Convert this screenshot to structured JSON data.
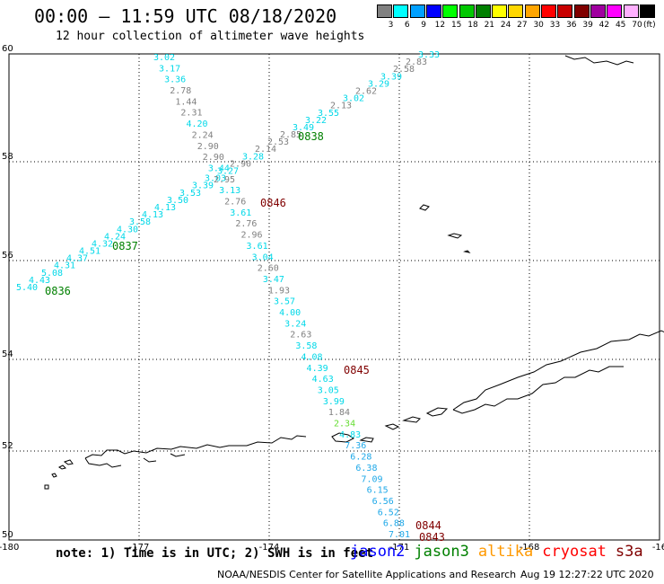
{
  "header": {
    "title": "00:00 – 11:59 UTC 08/18/2020",
    "subtitle": "12 hour collection of altimeter wave heights"
  },
  "color_scale": {
    "unit_label": "(ft)",
    "bins": [
      {
        "label": "3",
        "color": "#808080"
      },
      {
        "label": "6",
        "color": "#00ffff"
      },
      {
        "label": "9",
        "color": "#00a0ff"
      },
      {
        "label": "12",
        "color": "#0000ff"
      },
      {
        "label": "15",
        "color": "#00ff00"
      },
      {
        "label": "18",
        "color": "#00c800"
      },
      {
        "label": "21",
        "color": "#008000"
      },
      {
        "label": "24",
        "color": "#ffff00"
      },
      {
        "label": "27",
        "color": "#ffd700"
      },
      {
        "label": "30",
        "color": "#ffa500"
      },
      {
        "label": "33",
        "color": "#ff0000"
      },
      {
        "label": "36",
        "color": "#c80000"
      },
      {
        "label": "39",
        "color": "#800000"
      },
      {
        "label": "42",
        "color": "#a000a0"
      },
      {
        "label": "45",
        "color": "#ff00ff"
      },
      {
        "label": "70",
        "color": "#ffb0ff"
      },
      {
        "label": "",
        "color": "#000000"
      }
    ]
  },
  "axes": {
    "x_ticks": [
      "-180",
      "-177",
      "-174",
      "-171",
      "-168",
      "-16"
    ],
    "y_ticks": [
      "60",
      "58",
      "56",
      "54",
      "52",
      "50"
    ]
  },
  "pass_labels": [
    {
      "text": "0838",
      "color": "#008000",
      "id": "pass-0838"
    },
    {
      "text": "0837",
      "color": "#008000",
      "id": "pass-0837"
    },
    {
      "text": "0836",
      "color": "#008000",
      "id": "pass-0836"
    },
    {
      "text": "0846",
      "color": "#800000",
      "id": "pass-0846"
    },
    {
      "text": "0845",
      "color": "#800000",
      "id": "pass-0845"
    },
    {
      "text": "0844",
      "color": "#800000",
      "id": "pass-0844"
    },
    {
      "text": "0843",
      "color": "#800000",
      "id": "pass-0843"
    }
  ],
  "track_a_values": [
    "3.33",
    "2.83",
    "2.58",
    "3.39",
    "3.29",
    "2.62",
    "3.02",
    "2.13",
    "3.55",
    "3.22",
    "3.49",
    "2.85",
    "2.53",
    "2.14",
    "3.28",
    "2.90",
    "3.27",
    "3.03",
    "3.39",
    "3.53",
    "3.50",
    "4.13",
    "4.13",
    "3.58",
    "4.30",
    "4.24",
    "4.32",
    "4.51",
    "4.37",
    "4.31",
    "5.08",
    "4.43",
    "5.40"
  ],
  "track_b_values": [
    "3.02",
    "3.17",
    "3.36",
    "2.78",
    "1.44",
    "2.31",
    "4.20",
    "2.24",
    "2.90",
    "2.90",
    "3.44",
    "2.95",
    "3.13",
    "2.76",
    "3.61",
    "2.76",
    "2.96",
    "3.61",
    "3.04",
    "2.60",
    "3.47",
    "1.93",
    "3.57",
    "4.00",
    "3.24",
    "2.63",
    "3.58",
    "4.08",
    "4.39",
    "4.63",
    "3.05",
    "3.99",
    "1.84",
    "2.34",
    "4.83",
    "7.36",
    "6.28",
    "6.38",
    "7.09",
    "6.15",
    "6.56",
    "6.52",
    "6.88",
    "7.01"
  ],
  "footer": {
    "note": "note: 1) Time is in UTC; 2) SWH is in feet",
    "missions": [
      {
        "label": "jason2",
        "color": "#0000ff"
      },
      {
        "label": "jason3",
        "color": "#008000"
      },
      {
        "label": "altika",
        "color": "#ff9900"
      },
      {
        "label": "cryosat",
        "color": "#ff0000"
      },
      {
        "label": "s3a",
        "color": "#800000"
      }
    ],
    "credit": "NOAA/NESDIS Center for Satellite Applications and Research",
    "timestamp": "Aug 19 12:27:22 UTC 2020"
  }
}
